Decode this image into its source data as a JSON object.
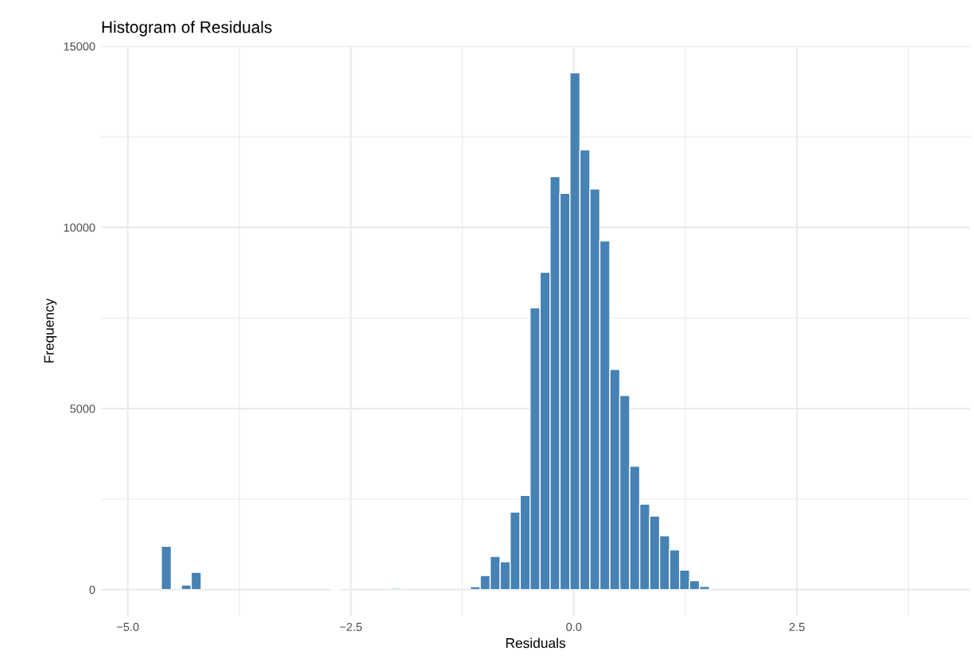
{
  "chart_data": {
    "type": "histogram",
    "title": "Histogram of Residuals",
    "xlabel": "Residuals",
    "ylabel": "Frequency",
    "bins": [
      -4.847,
      -4.735,
      -4.624,
      -4.512,
      -4.4,
      -4.289,
      -4.177,
      -4.065,
      -3.953,
      -3.842,
      -3.73,
      -3.618,
      -3.507,
      -3.395,
      -3.283,
      -3.172,
      -3.06,
      -2.948,
      -2.836,
      -2.725,
      -2.613,
      -2.501,
      -2.39,
      -2.278,
      -2.166,
      -2.055,
      -1.943,
      -1.831,
      -1.719,
      -1.608,
      -1.496,
      -1.384,
      -1.273,
      -1.161,
      -1.049,
      -0.938,
      -0.826,
      -0.714,
      -0.602,
      -0.491,
      -0.379,
      -0.267,
      -0.156,
      -0.044,
      0.068,
      0.18,
      0.291,
      0.403,
      0.515,
      0.626,
      0.738,
      0.85,
      0.961,
      1.073,
      1.185,
      1.297,
      1.408,
      1.52,
      1.632,
      1.743,
      1.855,
      1.967,
      2.078,
      2.19,
      2.302,
      2.414,
      2.525,
      2.637,
      2.749,
      2.86,
      2.972,
      3.084,
      3.195,
      3.307,
      3.419,
      3.531,
      3.642,
      3.754,
      3.866,
      3.977,
      4.089
    ],
    "values": [
      0,
      0,
      1200,
      0,
      130,
      480,
      0,
      0,
      0,
      0,
      0,
      0,
      0,
      0,
      0,
      0,
      0,
      0,
      0,
      10,
      0,
      0,
      0,
      0,
      0,
      40,
      0,
      0,
      0,
      0,
      0,
      0,
      0,
      80,
      390,
      920,
      770,
      2140,
      2600,
      7780,
      8760,
      11400,
      10940,
      14270,
      12140,
      11060,
      9630,
      6080,
      5360,
      3410,
      2360,
      2030,
      1490,
      1100,
      540,
      250,
      90,
      0,
      0,
      0,
      0,
      0,
      0,
      0,
      0,
      0,
      0,
      0,
      0,
      0,
      0,
      0,
      0,
      0,
      0,
      0,
      0,
      0,
      0,
      0
    ],
    "color": "#4682b4",
    "xlim": [
      -5.3,
      4.44
    ],
    "xticks": [
      {
        "value": -5.0,
        "label": "−5.0"
      },
      {
        "value": -3.75,
        "label": null
      },
      {
        "value": -2.5,
        "label": "−2.5"
      },
      {
        "value": -1.25,
        "label": null
      },
      {
        "value": 0.0,
        "label": "0.0"
      },
      {
        "value": 1.25,
        "label": null
      },
      {
        "value": 2.5,
        "label": "2.5"
      },
      {
        "value": 3.75,
        "label": null
      }
    ],
    "ylim": [
      -725,
      15005
    ],
    "yticks": [
      0,
      {
        "value": 2500,
        "label": null
      },
      5000,
      {
        "value": 7500,
        "label": null
      },
      10000,
      {
        "value": 12500,
        "label": null
      },
      15000
    ],
    "grid": true
  }
}
